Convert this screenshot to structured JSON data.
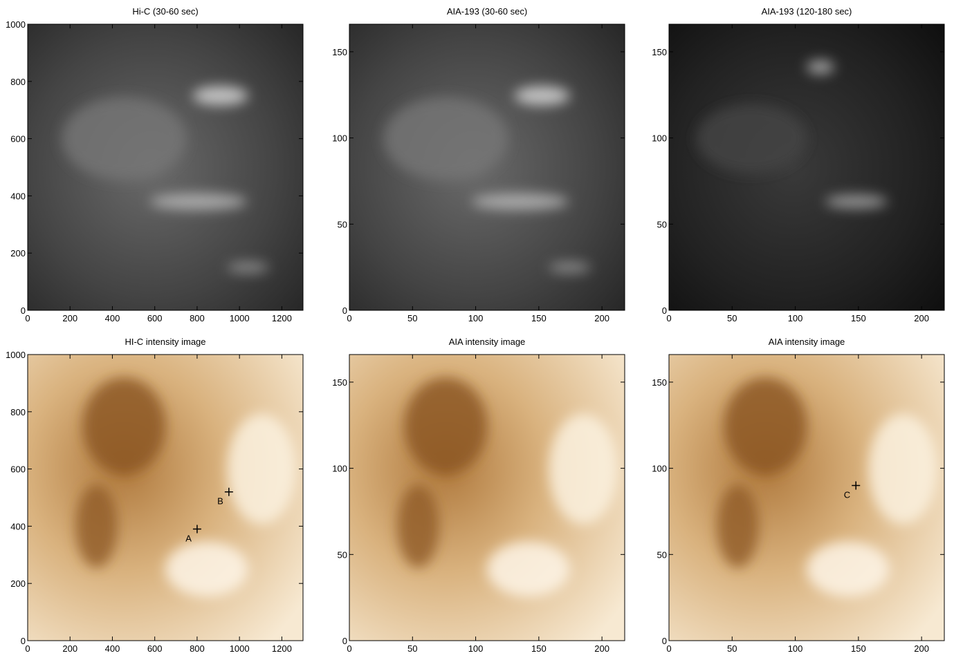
{
  "chart_data": [
    {
      "type": "image",
      "title": "Hi-C (30-60 sec)",
      "colormap": "gray",
      "xlim": [
        0,
        1300
      ],
      "ylim": [
        0,
        1000
      ],
      "xticks": [
        0,
        200,
        400,
        600,
        800,
        1000,
        1200
      ],
      "yticks": [
        0,
        200,
        400,
        600,
        800,
        1000
      ],
      "annotations": []
    },
    {
      "type": "image",
      "title": "AIA-193 (30-60 sec)",
      "colormap": "gray",
      "xlim": [
        0,
        218
      ],
      "ylim": [
        0,
        166
      ],
      "xticks": [
        0,
        50,
        100,
        150,
        200
      ],
      "yticks": [
        0,
        50,
        100,
        150
      ],
      "annotations": []
    },
    {
      "type": "image",
      "title": "AIA-193 (120-180 sec)",
      "colormap": "dark",
      "xlim": [
        0,
        218
      ],
      "ylim": [
        0,
        166
      ],
      "xticks": [
        0,
        50,
        100,
        150,
        200
      ],
      "yticks": [
        0,
        50,
        100,
        150
      ],
      "annotations": []
    },
    {
      "type": "image",
      "title": "HI-C intensity image",
      "colormap": "brown",
      "xlim": [
        0,
        1300
      ],
      "ylim": [
        0,
        1000
      ],
      "xticks": [
        0,
        200,
        400,
        600,
        800,
        1000,
        1200
      ],
      "yticks": [
        0,
        200,
        400,
        600,
        800,
        1000
      ],
      "annotations": [
        {
          "label": "A",
          "x": 800,
          "y": 390
        },
        {
          "label": "B",
          "x": 950,
          "y": 520
        }
      ]
    },
    {
      "type": "image",
      "title": "AIA intensity image",
      "colormap": "brown",
      "xlim": [
        0,
        218
      ],
      "ylim": [
        0,
        166
      ],
      "xticks": [
        0,
        50,
        100,
        150,
        200
      ],
      "yticks": [
        0,
        50,
        100,
        150
      ],
      "annotations": []
    },
    {
      "type": "image",
      "title": "AIA intensity image",
      "colormap": "brown",
      "xlim": [
        0,
        218
      ],
      "ylim": [
        0,
        166
      ],
      "xticks": [
        0,
        50,
        100,
        150,
        200
      ],
      "yticks": [
        0,
        50,
        100,
        150
      ],
      "annotations": [
        {
          "label": "C",
          "x": 148,
          "y": 90
        }
      ]
    }
  ]
}
